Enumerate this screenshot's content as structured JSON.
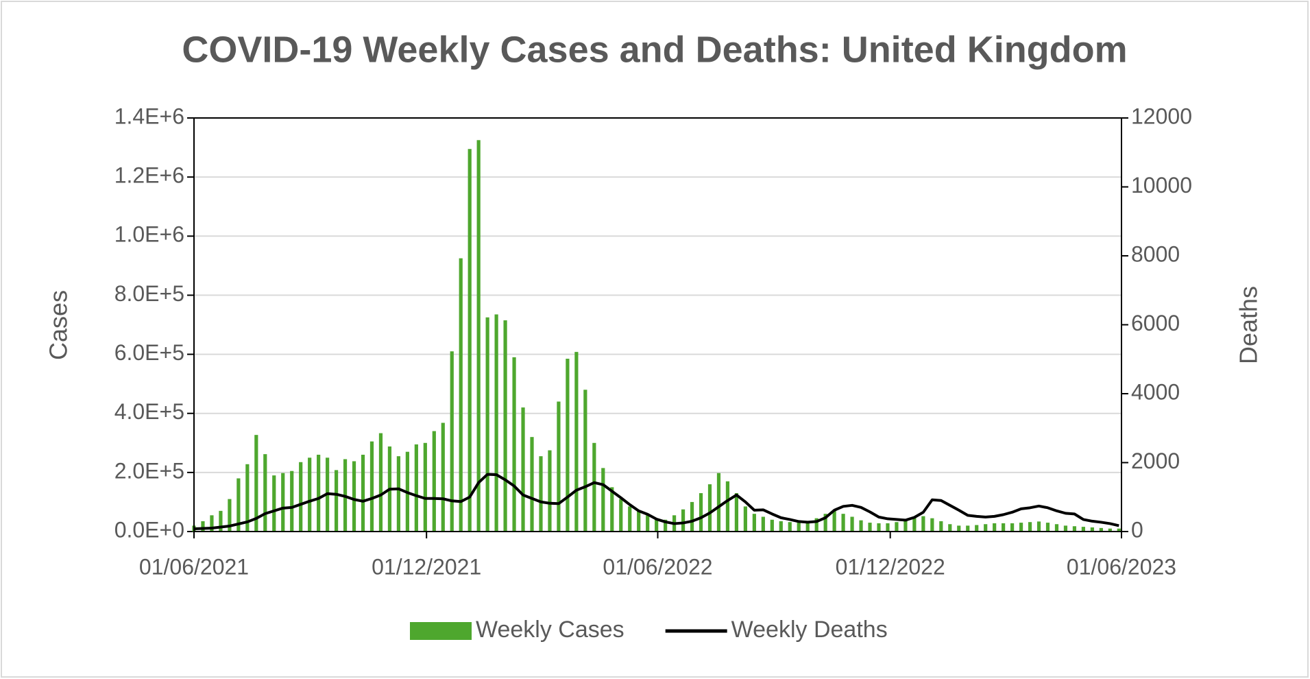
{
  "chart_data": {
    "type": "bar",
    "title": "COVID-19 Weekly Cases and Deaths: United Kingdom",
    "ylabel": "Cases",
    "y2label": "Deaths",
    "x": [
      "01/06/2021",
      "08/06/2021",
      "15/06/2021",
      "22/06/2021",
      "29/06/2021",
      "06/07/2021",
      "13/07/2021",
      "20/07/2021",
      "27/07/2021",
      "03/08/2021",
      "10/08/2021",
      "17/08/2021",
      "24/08/2021",
      "31/08/2021",
      "07/09/2021",
      "14/09/2021",
      "21/09/2021",
      "28/09/2021",
      "05/10/2021",
      "12/10/2021",
      "19/10/2021",
      "26/10/2021",
      "02/11/2021",
      "09/11/2021",
      "16/11/2021",
      "23/11/2021",
      "30/11/2021",
      "07/12/2021",
      "14/12/2021",
      "21/12/2021",
      "28/12/2021",
      "04/01/2022",
      "11/01/2022",
      "18/01/2022",
      "25/01/2022",
      "01/02/2022",
      "08/02/2022",
      "15/02/2022",
      "22/02/2022",
      "01/03/2022",
      "08/03/2022",
      "15/03/2022",
      "22/03/2022",
      "29/03/2022",
      "05/04/2022",
      "12/04/2022",
      "19/04/2022",
      "26/04/2022",
      "03/05/2022",
      "10/05/2022",
      "17/05/2022",
      "24/05/2022",
      "31/05/2022",
      "07/06/2022",
      "14/06/2022",
      "21/06/2022",
      "28/06/2022",
      "05/07/2022",
      "12/07/2022",
      "19/07/2022",
      "26/07/2022",
      "02/08/2022",
      "09/08/2022",
      "16/08/2022",
      "23/08/2022",
      "30/08/2022",
      "06/09/2022",
      "13/09/2022",
      "20/09/2022",
      "27/09/2022",
      "04/10/2022",
      "11/10/2022",
      "18/10/2022",
      "25/10/2022",
      "01/11/2022",
      "08/11/2022",
      "15/11/2022",
      "22/11/2022",
      "29/11/2022",
      "06/12/2022",
      "13/12/2022",
      "20/12/2022",
      "27/12/2022",
      "03/01/2023",
      "10/01/2023",
      "17/01/2023",
      "24/01/2023",
      "31/01/2023",
      "07/02/2023",
      "14/02/2023",
      "21/02/2023",
      "28/02/2023",
      "07/03/2023",
      "14/03/2023",
      "21/03/2023",
      "28/03/2023",
      "04/04/2023",
      "11/04/2023",
      "18/04/2023",
      "25/04/2023",
      "02/05/2023",
      "09/05/2023",
      "16/05/2023",
      "23/05/2023",
      "30/05/2023"
    ],
    "series": [
      {
        "name": "Weekly Cases",
        "type": "bar",
        "axis": "y",
        "color": "#4ea72e",
        "values": [
          20000,
          35000,
          55000,
          70000,
          110000,
          180000,
          228000,
          327000,
          262000,
          190000,
          198000,
          205000,
          235000,
          250000,
          260000,
          250000,
          208000,
          245000,
          238000,
          260000,
          305000,
          333000,
          288000,
          255000,
          270000,
          295000,
          300000,
          340000,
          368000,
          610000,
          925000,
          1295000,
          1325000,
          725000,
          735000,
          715000,
          590000,
          420000,
          320000,
          255000,
          275000,
          440000,
          585000,
          608000,
          480000,
          300000,
          215000,
          150000,
          110000,
          85000,
          70000,
          55000,
          45000,
          40000,
          55000,
          75000,
          100000,
          130000,
          160000,
          198000,
          170000,
          130000,
          85000,
          60000,
          50000,
          40000,
          35000,
          32000,
          30000,
          35000,
          45000,
          60000,
          70000,
          60000,
          50000,
          38000,
          30000,
          28000,
          28000,
          32000,
          40000,
          48000,
          52000,
          45000,
          35000,
          25000,
          20000,
          20000,
          22000,
          25000,
          28000,
          28000,
          28000,
          30000,
          32000,
          34000,
          30000,
          25000,
          20000,
          18000,
          16000,
          14000,
          12000,
          10000,
          10000
        ]
      },
      {
        "name": "Weekly Deaths",
        "type": "line",
        "axis": "y2",
        "color": "#000000",
        "values": [
          80,
          90,
          100,
          130,
          160,
          220,
          280,
          380,
          520,
          600,
          680,
          700,
          790,
          880,
          960,
          1100,
          1080,
          1020,
          930,
          880,
          960,
          1060,
          1230,
          1240,
          1130,
          1040,
          960,
          960,
          950,
          890,
          870,
          1000,
          1420,
          1660,
          1650,
          1500,
          1320,
          1060,
          960,
          860,
          820,
          810,
          1000,
          1200,
          1300,
          1420,
          1360,
          1170,
          980,
          780,
          600,
          500,
          360,
          280,
          230,
          250,
          300,
          400,
          540,
          720,
          900,
          1060,
          860,
          620,
          630,
          510,
          400,
          350,
          290,
          270,
          290,
          400,
          620,
          730,
          760,
          700,
          570,
          420,
          370,
          350,
          330,
          410,
          560,
          920,
          900,
          760,
          620,
          470,
          440,
          420,
          440,
          490,
          560,
          660,
          690,
          740,
          690,
          600,
          530,
          510,
          350,
          300,
          270,
          230,
          170
        ]
      }
    ],
    "xlim": [
      "01/06/2021",
      "01/06/2023"
    ],
    "xticks": [
      "01/06/2021",
      "01/12/2021",
      "01/06/2022",
      "01/12/2022",
      "01/06/2023"
    ],
    "ylim": [
      0,
      1400000
    ],
    "yticks": [
      {
        "value": 0,
        "label": "0.0E+0"
      },
      {
        "value": 200000,
        "label": "2.0E+5"
      },
      {
        "value": 400000,
        "label": "4.0E+5"
      },
      {
        "value": 600000,
        "label": "6.0E+5"
      },
      {
        "value": 800000,
        "label": "8.0E+5"
      },
      {
        "value": 1000000,
        "label": "1.0E+6"
      },
      {
        "value": 1200000,
        "label": "1.2E+6"
      },
      {
        "value": 1400000,
        "label": "1.4E+6"
      }
    ],
    "y2lim": [
      0,
      12000
    ],
    "y2ticks": [
      0,
      2000,
      4000,
      6000,
      8000,
      10000,
      12000
    ],
    "grid": true,
    "legend": "bottom"
  }
}
